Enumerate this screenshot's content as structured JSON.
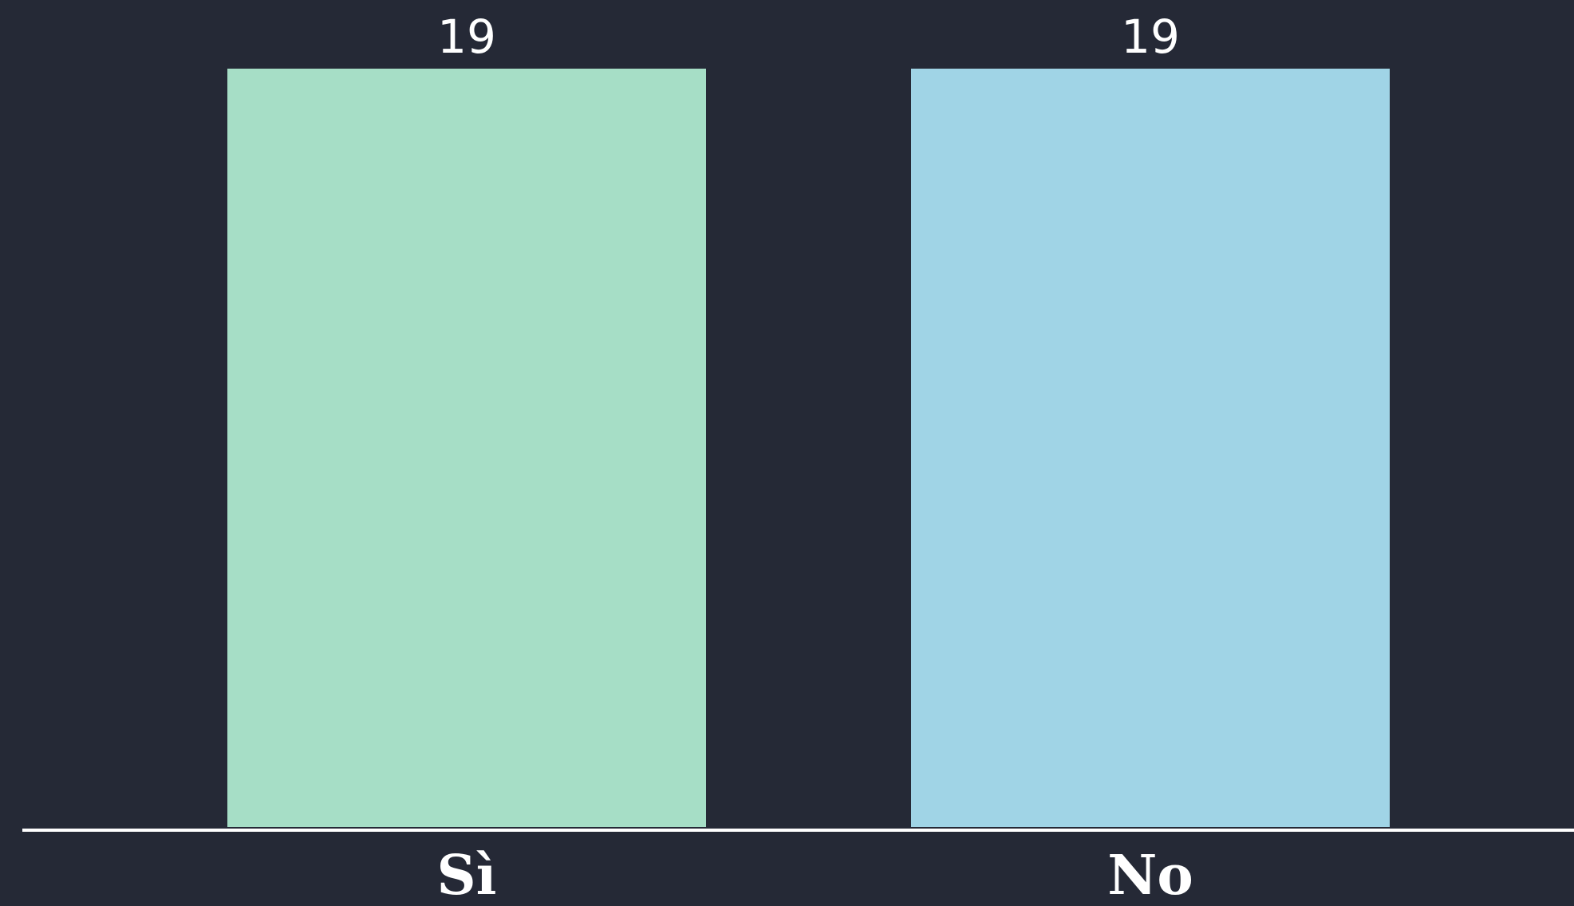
{
  "chart_data": {
    "type": "bar",
    "categories": [
      "Sì",
      "No"
    ],
    "values": [
      19,
      19
    ],
    "colors": [
      "#a6dec6",
      "#a0d4e6"
    ],
    "title": "",
    "xlabel": "",
    "ylabel": "",
    "ylim": [
      0,
      19
    ],
    "grid": false,
    "legend": "none",
    "data_labels": [
      "19",
      "19"
    ]
  },
  "theme": {
    "background": "#252936",
    "axis_color": "#ffffff",
    "text_color": "#ffffff"
  }
}
